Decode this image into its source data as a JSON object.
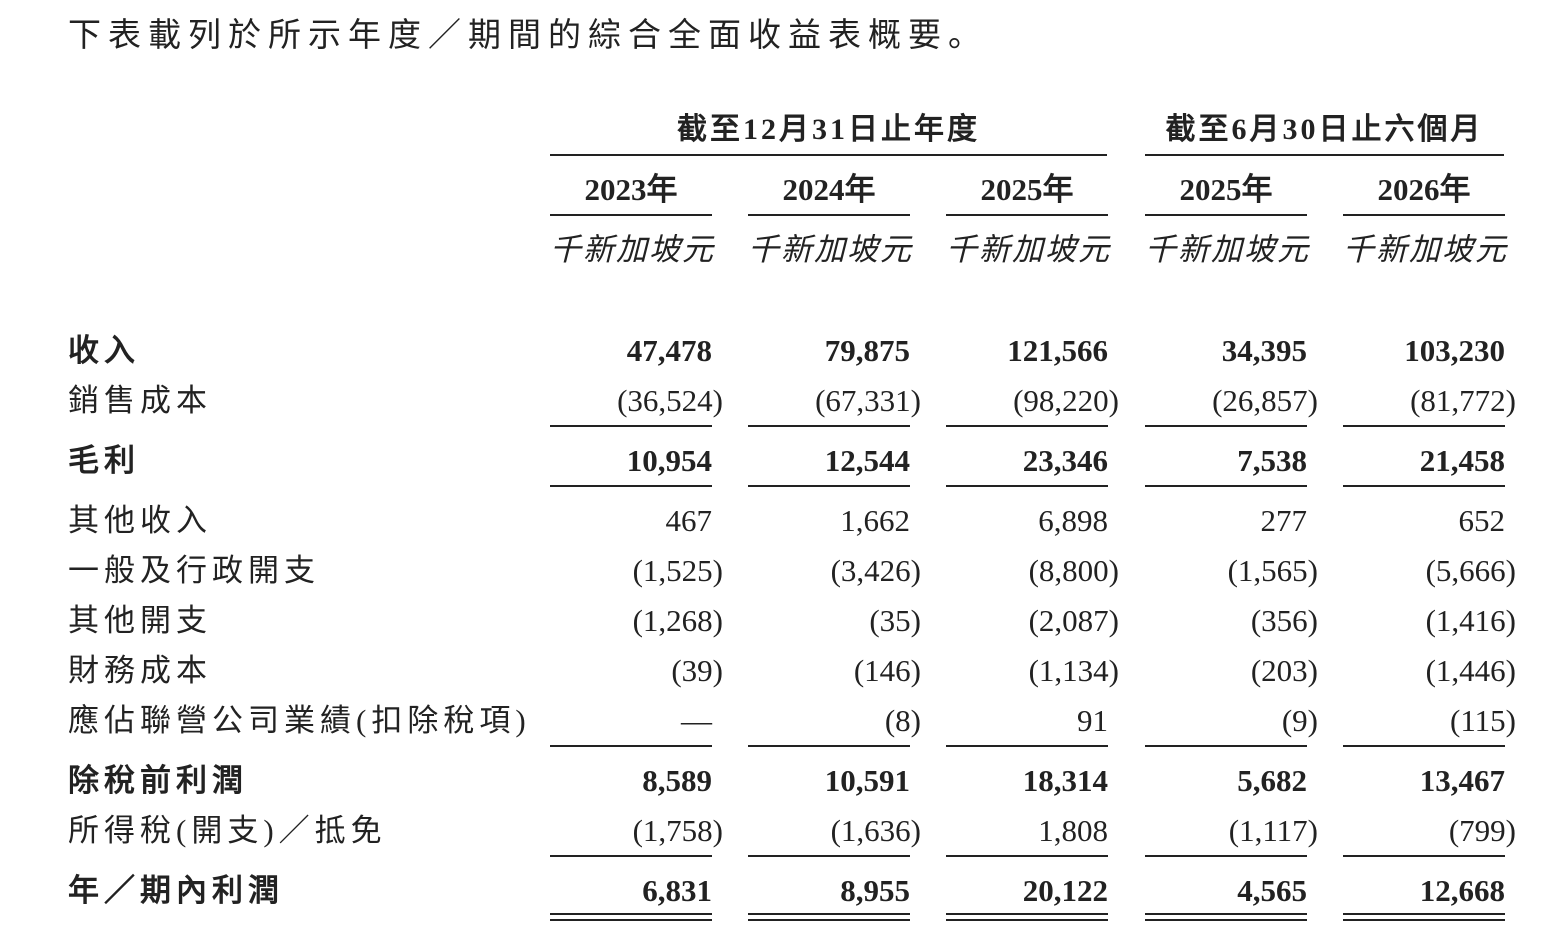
{
  "intro": "下表載列於所示年度／期間的綜合全面收益表概要。",
  "header_groups": [
    "截至12月31日止年度",
    "截至6月30日止六個月"
  ],
  "columns": [
    {
      "year": "2023年",
      "unit": "千新加坡元"
    },
    {
      "year": "2024年",
      "unit": "千新加坡元"
    },
    {
      "year": "2025年",
      "unit": "千新加坡元"
    },
    {
      "year": "2025年",
      "unit": "千新加坡元"
    },
    {
      "year": "2026年",
      "unit": "千新加坡元"
    }
  ],
  "rows": [
    {
      "label": "收入",
      "bold": true,
      "values": [
        "47,478",
        "79,875",
        "121,566",
        "34,395",
        "103,230"
      ]
    },
    {
      "label": "銷售成本",
      "bold": false,
      "values": [
        "(36,524)",
        "(67,331)",
        "(98,220)",
        "(26,857)",
        "(81,772)"
      ]
    },
    {
      "label": "毛利",
      "bold": true,
      "values": [
        "10,954",
        "12,544",
        "23,346",
        "7,538",
        "21,458"
      ]
    },
    {
      "label": "其他收入",
      "bold": false,
      "values": [
        "467",
        "1,662",
        "6,898",
        "277",
        "652"
      ]
    },
    {
      "label": "一般及行政開支",
      "bold": false,
      "values": [
        "(1,525)",
        "(3,426)",
        "(8,800)",
        "(1,565)",
        "(5,666)"
      ]
    },
    {
      "label": "其他開支",
      "bold": false,
      "values": [
        "(1,268)",
        "(35)",
        "(2,087)",
        "(356)",
        "(1,416)"
      ]
    },
    {
      "label": "財務成本",
      "bold": false,
      "values": [
        "(39)",
        "(146)",
        "(1,134)",
        "(203)",
        "(1,446)"
      ]
    },
    {
      "label": "應佔聯營公司業績(扣除稅項)",
      "bold": false,
      "values": [
        "—",
        "(8)",
        "91",
        "(9)",
        "(115)"
      ]
    },
    {
      "label": "除稅前利潤",
      "bold": true,
      "values": [
        "8,589",
        "10,591",
        "18,314",
        "5,682",
        "13,467"
      ]
    },
    {
      "label": "所得稅(開支)／抵免",
      "bold": false,
      "values": [
        "(1,758)",
        "(1,636)",
        "1,808",
        "(1,117)",
        "(799)"
      ]
    },
    {
      "label": "年／期內利潤",
      "bold": true,
      "values": [
        "6,831",
        "8,955",
        "20,122",
        "4,565",
        "12,668"
      ]
    }
  ]
}
